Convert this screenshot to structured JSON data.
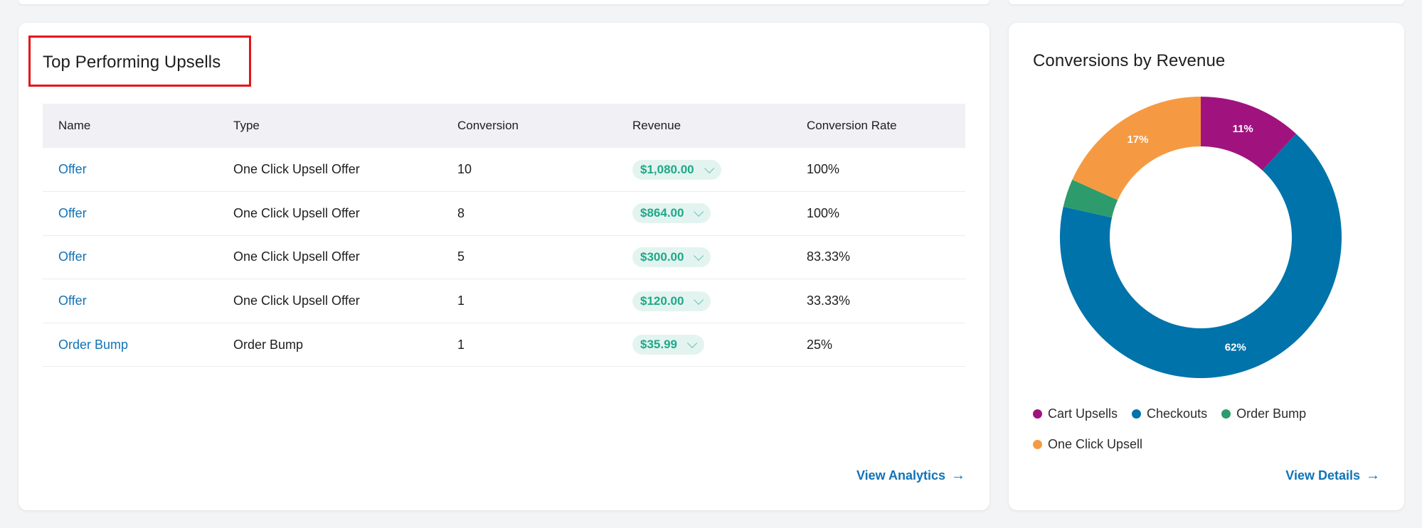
{
  "upsells_card": {
    "title": "Top Performing Upsells",
    "columns": [
      "Name",
      "Type",
      "Conversion",
      "Revenue",
      "Conversion Rate"
    ],
    "rows": [
      {
        "name": "Offer",
        "type": "One Click Upsell Offer",
        "conversion": "10",
        "revenue": "$1,080.00",
        "rate": "100%"
      },
      {
        "name": "Offer",
        "type": "One Click Upsell Offer",
        "conversion": "8",
        "revenue": "$864.00",
        "rate": "100%"
      },
      {
        "name": "Offer",
        "type": "One Click Upsell Offer",
        "conversion": "5",
        "revenue": "$300.00",
        "rate": "83.33%"
      },
      {
        "name": "Offer",
        "type": "One Click Upsell Offer",
        "conversion": "1",
        "revenue": "$120.00",
        "rate": "33.33%"
      },
      {
        "name": "Order Bump",
        "type": "Order Bump",
        "conversion": "1",
        "revenue": "$35.99",
        "rate": "25%"
      }
    ],
    "footer_link": "View Analytics",
    "colors": {
      "link": "#1173b6",
      "pill_bg": "#e3f4f0",
      "pill_text": "#1fa889",
      "highlight": "#e3141b"
    }
  },
  "conversions_card": {
    "title": "Conversions by Revenue",
    "footer_link": "View Details"
  },
  "chart_data": {
    "type": "pie",
    "style": "donut",
    "title": "Conversions by Revenue",
    "slices": [
      {
        "name": "Cart Upsells",
        "value": 11,
        "label": "11%",
        "color": "#a0137e"
      },
      {
        "name": "Checkouts",
        "value": 62,
        "label": "62%",
        "color": "#0073aa"
      },
      {
        "name": "Order Bump",
        "value": 3,
        "label": "",
        "color": "#2e9b6c"
      },
      {
        "name": "One Click Upsell",
        "value": 17,
        "label": "17%",
        "color": "#f59a42"
      }
    ],
    "start_angle_deg": 0,
    "legend_position": "bottom"
  }
}
